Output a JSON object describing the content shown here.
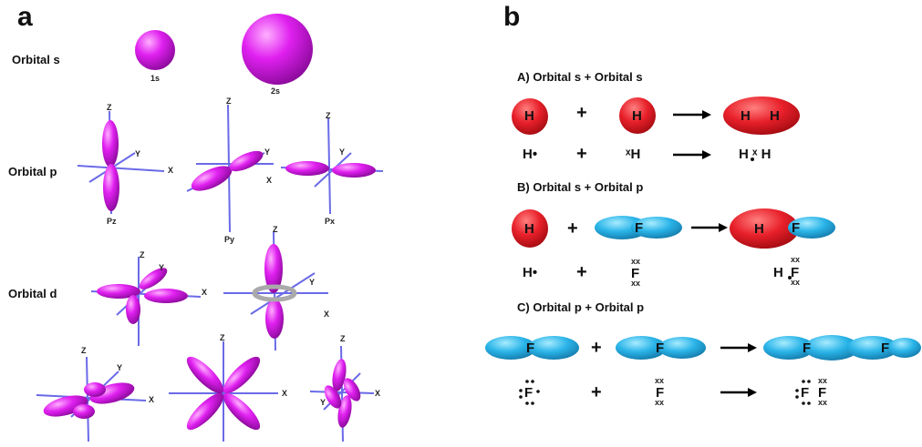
{
  "panel_a": {
    "letter": "a",
    "rows": {
      "s": "Orbital s",
      "p": "Orbital p",
      "d": "Orbital d"
    },
    "s_labels": [
      "1s",
      "2s"
    ],
    "p_labels": [
      "Pz",
      "Py",
      "Px"
    ],
    "axes": {
      "x": "X",
      "y": "Y",
      "z": "Z"
    }
  },
  "panel_b": {
    "letter": "b",
    "sections": {
      "A": "A) Orbital s + Orbital s",
      "B": "B) Orbital s + Orbital p",
      "C": "C) Orbital p + Orbital p"
    },
    "atoms": {
      "h": "H",
      "f": "F"
    },
    "plus": "+",
    "lewis": {
      "h_dot": "H•",
      "h_cross": "ˣH",
      "f_dots": "F",
      "f_cross": "F",
      "xx": "xx",
      "x": "x",
      "h2": "H ˣ H"
    }
  },
  "colors": {
    "magenta": "#e020f0",
    "red": "#e8202a",
    "cyan": "#2ab4e8",
    "axis": "#6a6ae8",
    "ring": "#aaaaaa"
  }
}
